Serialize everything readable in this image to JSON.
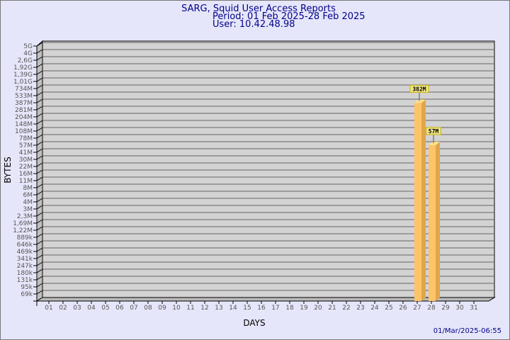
{
  "chart_data": {
    "type": "bar",
    "title": "SARG, Squid User Access Reports",
    "subtitle": [
      "Period: 01 Feb 2025-28 Feb 2025",
      "User: 10.42.48.98"
    ],
    "xlabel": "DAYS",
    "ylabel": "BYTES",
    "footer": "01/Mar/2025-06:55",
    "y_scale": "log",
    "y_ticks": [
      "5G",
      "4G",
      "2,6G",
      "1,92G",
      "1,39G",
      "1,01G",
      "734M",
      "533M",
      "387M",
      "281M",
      "204M",
      "148M",
      "108M",
      "78M",
      "57M",
      "41M",
      "30M",
      "22M",
      "16M",
      "11M",
      "8M",
      "6M",
      "4M",
      "3M",
      "2,3M",
      "1,69M",
      "1,22M",
      "889k",
      "646k",
      "469k",
      "341k",
      "247k",
      "180k",
      "131k",
      "95k",
      "69k"
    ],
    "categories": [
      "01",
      "02",
      "03",
      "04",
      "05",
      "06",
      "07",
      "08",
      "09",
      "10",
      "11",
      "12",
      "13",
      "14",
      "15",
      "16",
      "17",
      "18",
      "19",
      "20",
      "21",
      "22",
      "23",
      "24",
      "25",
      "26",
      "27",
      "28",
      "29",
      "30",
      "31"
    ],
    "bars": [
      {
        "day": "27",
        "value": 382000000,
        "label": "382M"
      },
      {
        "day": "28",
        "value": 57000000,
        "label": "57M"
      }
    ],
    "grid": true,
    "colors": {
      "bar_front": "#fec468",
      "bar_side": "#e0a64c",
      "bar_top": "#fee08a",
      "plot_bg": "#d3d3d3",
      "background": "#e6e6fa",
      "label_bg": "#f0e68c"
    }
  }
}
